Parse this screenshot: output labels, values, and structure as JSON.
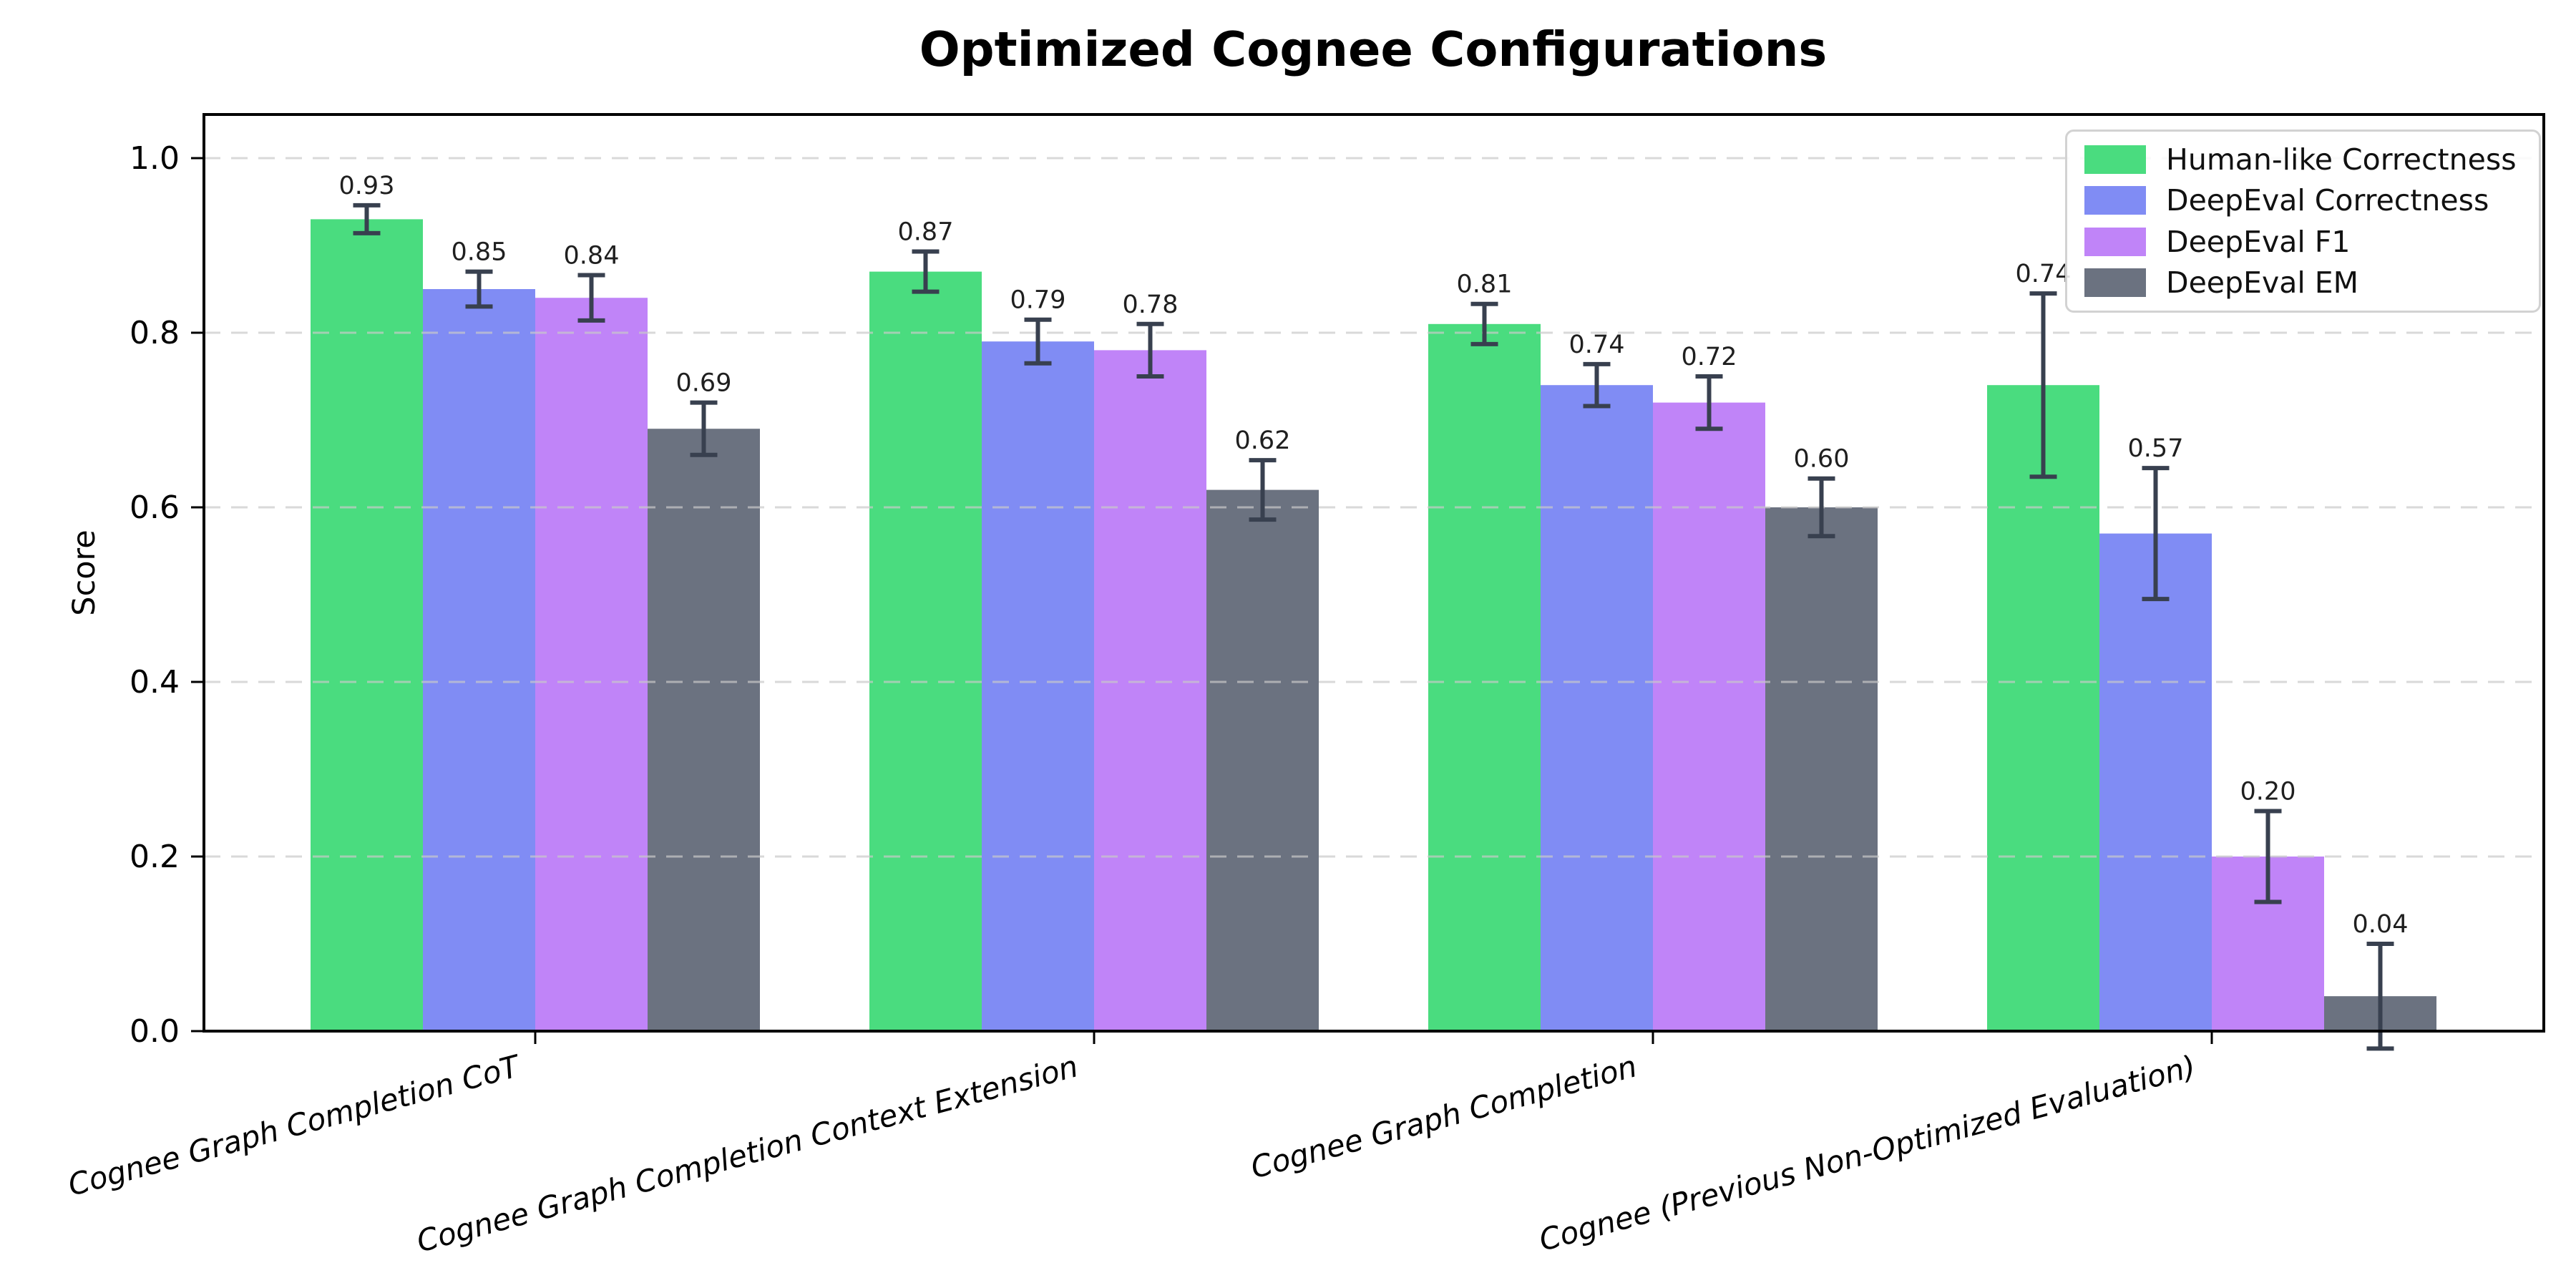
{
  "chart_data": {
    "type": "bar",
    "title": "Optimized Cognee Configurations",
    "ylabel": "Score",
    "xlabel": "",
    "ylim": [
      0,
      1.05
    ],
    "yticks": [
      0,
      0.2,
      0.4,
      0.6,
      0.8,
      1.0
    ],
    "grid": "horizontal-dashed",
    "legend_position": "upper-right",
    "error_bars": true,
    "categories": [
      "Cognee Graph Completion CoT",
      "Cognee Graph Completion Context Extension",
      "Cognee Graph Completion",
      "Cognee (Previous Non-Optimized Evaluation)"
    ],
    "series": [
      {
        "name": "Human-like Correctness",
        "color": "#4adc7f",
        "values": [
          0.93,
          0.87,
          0.81,
          0.74
        ],
        "errors": [
          0.016,
          0.023,
          0.023,
          0.105
        ]
      },
      {
        "name": "DeepEval Correctness",
        "color": "#808cf4",
        "values": [
          0.85,
          0.79,
          0.74,
          0.57
        ],
        "errors": [
          0.02,
          0.025,
          0.024,
          0.075
        ]
      },
      {
        "name": "DeepEval F1",
        "color": "#c084f8",
        "values": [
          0.84,
          0.78,
          0.72,
          0.2
        ],
        "errors": [
          0.026,
          0.03,
          0.03,
          0.052
        ]
      },
      {
        "name": "DeepEval EM",
        "color": "#6b7280",
        "values": [
          0.69,
          0.62,
          0.6,
          0.04
        ],
        "errors": [
          0.03,
          0.034,
          0.033,
          0.06
        ]
      }
    ],
    "colors": {
      "error_bar": "#38404f",
      "grid": "#c9c9c9",
      "axis": "#000000",
      "value_label": "#1f1f1f"
    }
  }
}
